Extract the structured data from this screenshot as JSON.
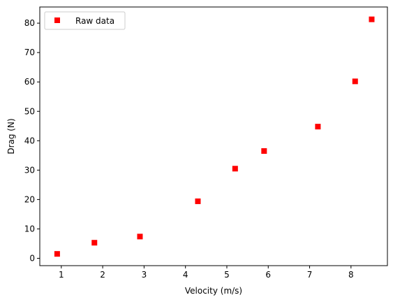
{
  "chart_data": {
    "type": "scatter",
    "title": "",
    "xlabel": "Velocity (m/s)",
    "ylabel": "Drag (N)",
    "xlim": [
      0.48,
      8.88
    ],
    "ylim": [
      -2.5,
      85.5
    ],
    "xticks": [
      1,
      2,
      3,
      4,
      5,
      6,
      7,
      8
    ],
    "yticks": [
      0,
      10,
      20,
      30,
      40,
      50,
      60,
      70,
      80
    ],
    "grid": false,
    "legend_position": "top-left",
    "series": [
      {
        "name": "Raw data",
        "marker": "square",
        "color": "#ff0000",
        "points": [
          {
            "x": 0.9,
            "y": 1.5
          },
          {
            "x": 1.8,
            "y": 5.3
          },
          {
            "x": 2.9,
            "y": 7.4
          },
          {
            "x": 4.3,
            "y": 19.4
          },
          {
            "x": 5.2,
            "y": 30.5
          },
          {
            "x": 5.9,
            "y": 36.5
          },
          {
            "x": 7.2,
            "y": 44.8
          },
          {
            "x": 8.1,
            "y": 60.2
          },
          {
            "x": 8.5,
            "y": 81.3
          }
        ]
      }
    ]
  }
}
